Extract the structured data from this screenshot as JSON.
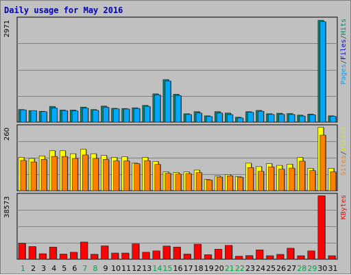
{
  "chart_data": {
    "type": "bar",
    "title": "Daily usage for May 2016",
    "categories": [
      "1",
      "2",
      "3",
      "4",
      "5",
      "6",
      "7",
      "8",
      "9",
      "10",
      "11",
      "12",
      "13",
      "14",
      "15",
      "16",
      "17",
      "18",
      "19",
      "20",
      "21",
      "22",
      "23",
      "24",
      "25",
      "26",
      "27",
      "28",
      "29",
      "30",
      "31"
    ],
    "weekend_days": [
      1,
      7,
      8,
      14,
      15,
      21,
      22,
      28,
      29
    ],
    "panels": [
      {
        "id": "top",
        "max_label": "2971",
        "ymax": 2971,
        "legend": [
          {
            "text": "Hits",
            "color": "#00806f"
          },
          {
            "text": "/",
            "color": "#404040"
          },
          {
            "text": "Files",
            "color": "#0000ff"
          },
          {
            "text": "/",
            "color": "#404040"
          },
          {
            "text": "Pages",
            "color": "#00a0ff"
          }
        ],
        "series": [
          {
            "name": "Hits",
            "color": "#00806f",
            "values": [
              360,
              330,
              310,
              450,
              345,
              345,
              430,
              360,
              460,
              395,
              390,
              410,
              480,
              810,
              1220,
              800,
              240,
              300,
              180,
              300,
              260,
              140,
              300,
              335,
              240,
              255,
              245,
              200,
              230,
              2920,
              180
            ]
          },
          {
            "name": "Pages",
            "color": "#00a8ff",
            "values": [
              350,
              330,
              300,
              400,
              330,
              320,
              400,
              340,
              425,
              380,
              375,
              390,
              450,
              780,
              1180,
              760,
              220,
              260,
              160,
              260,
              215,
              120,
              280,
              310,
              220,
              225,
              220,
              175,
              210,
              2880,
              165
            ]
          }
        ]
      },
      {
        "id": "middle",
        "max_label": "260",
        "ymax": 260,
        "legend": [
          {
            "text": "Visits",
            "color": "#e0e000"
          },
          {
            "text": "/",
            "color": "#404040"
          },
          {
            "text": "Sites",
            "color": "#ff8000"
          }
        ],
        "series": [
          {
            "name": "Visits",
            "color": "#ffff00",
            "values": [
              134,
              130,
              140,
              161,
              161,
              149,
              167,
              149,
              142,
              134,
              137,
              111,
              134,
              118,
              76,
              73,
              76,
              83,
              45,
              59,
              65,
              57,
              111,
              97,
              109,
              102,
              107,
              134,
              90,
              255,
              90
            ]
          },
          {
            "name": "Sites",
            "color": "#ff8000",
            "values": [
              122,
              116,
              126,
              138,
              138,
              130,
              144,
              130,
              126,
              120,
              120,
              109,
              121,
              106,
              70,
              67,
              69,
              73,
              43,
              55,
              60,
              54,
              93,
              78,
              96,
              87,
              91,
              119,
              81,
              224,
              76
            ]
          }
        ]
      },
      {
        "id": "bottom",
        "max_label": "38573",
        "ymax": 38573,
        "legend": [
          {
            "text": "KBytes",
            "color": "#ff0000"
          }
        ],
        "series": [
          {
            "name": "KBytes",
            "color": "#ff0000",
            "values": [
              9600,
              7600,
              3300,
              7300,
              3100,
              4200,
              10300,
              3000,
              8000,
              3700,
              3700,
              9200,
              4200,
              5000,
              7900,
              7300,
              3100,
              9000,
              2700,
              6000,
              8300,
              1800,
              2200,
              5600,
              2100,
              2900,
              6600,
              2100,
              5000,
              38000,
              2100
            ]
          }
        ]
      }
    ]
  }
}
